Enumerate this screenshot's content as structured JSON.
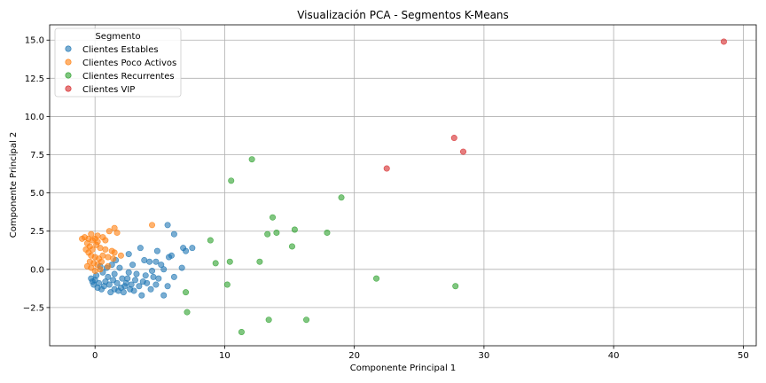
{
  "chart_data": {
    "type": "scatter",
    "title": "Visualización PCA - Segmentos K-Means",
    "xlabel": "Componente Principal 1",
    "ylabel": "Componente Principal 2",
    "xlim": [
      -3.5,
      51
    ],
    "ylim": [
      -5.0,
      16.0
    ],
    "xticks": [
      0,
      10,
      20,
      30,
      40,
      50
    ],
    "yticks": [
      -2.5,
      0.0,
      2.5,
      5.0,
      7.5,
      10.0,
      12.5,
      15.0
    ],
    "xtick_labels": [
      "0",
      "10",
      "20",
      "30",
      "40",
      "50"
    ],
    "ytick_labels": [
      "−2.5",
      "0.0",
      "2.5",
      "5.0",
      "7.5",
      "10.0",
      "12.5",
      "15.0"
    ],
    "grid": true,
    "legend": {
      "title": "Segmento",
      "placement": "top-left"
    },
    "series": [
      {
        "name": "Clientes Estables",
        "color": "#1f77b4",
        "points": [
          [
            5.6,
            2.9
          ],
          [
            6.1,
            2.3
          ],
          [
            3.5,
            1.4
          ],
          [
            6.8,
            1.4
          ],
          [
            7.5,
            1.4
          ],
          [
            7.0,
            1.2
          ],
          [
            4.8,
            1.2
          ],
          [
            5.9,
            0.9
          ],
          [
            5.7,
            0.8
          ],
          [
            2.6,
            1.0
          ],
          [
            3.8,
            0.6
          ],
          [
            4.2,
            0.5
          ],
          [
            4.7,
            0.5
          ],
          [
            5.1,
            0.3
          ],
          [
            6.7,
            0.1
          ],
          [
            5.3,
            0.0
          ],
          [
            4.4,
            -0.1
          ],
          [
            3.2,
            -0.3
          ],
          [
            4.9,
            -0.6
          ],
          [
            6.1,
            -0.5
          ],
          [
            4.0,
            -0.9
          ],
          [
            4.7,
            -1.0
          ],
          [
            5.6,
            -1.1
          ],
          [
            4.3,
            -1.3
          ],
          [
            3.6,
            -1.7
          ],
          [
            5.3,
            -1.7
          ],
          [
            3.1,
            -0.7
          ],
          [
            3.9,
            -0.4
          ],
          [
            2.6,
            -0.2
          ],
          [
            2.9,
            0.3
          ],
          [
            2.5,
            -0.6
          ],
          [
            2.4,
            -0.9
          ],
          [
            2.0,
            -1.2
          ],
          [
            1.5,
            -1.3
          ],
          [
            1.2,
            -1.5
          ],
          [
            1.8,
            -1.4
          ],
          [
            0.7,
            -1.1
          ],
          [
            0.3,
            -0.9
          ],
          [
            0.0,
            -0.7
          ],
          [
            -0.2,
            -0.8
          ],
          [
            0.5,
            -1.3
          ],
          [
            1.0,
            -0.5
          ],
          [
            1.5,
            -0.3
          ],
          [
            2.1,
            -0.6
          ],
          [
            0.6,
            -0.2
          ],
          [
            0.9,
            0.1
          ],
          [
            1.3,
            0.3
          ],
          [
            0.4,
            0.2
          ],
          [
            2.3,
            -1.1
          ],
          [
            2.8,
            -1.0
          ],
          [
            1.7,
            -0.9
          ],
          [
            1.1,
            -1.0
          ],
          [
            0.2,
            -1.2
          ],
          [
            -0.1,
            -1.0
          ],
          [
            3.4,
            -1.1
          ],
          [
            3.0,
            -1.4
          ],
          [
            2.2,
            -1.5
          ],
          [
            1.9,
            0.1
          ],
          [
            1.4,
            -0.7
          ],
          [
            0.8,
            -0.8
          ],
          [
            -0.3,
            -0.6
          ],
          [
            0.1,
            -0.4
          ],
          [
            2.7,
            -1.3
          ],
          [
            3.7,
            -0.8
          ],
          [
            4.5,
            -0.5
          ],
          [
            1.6,
            0.6
          ]
        ]
      },
      {
        "name": "Clientes Poco Activos",
        "color": "#ff7f0e",
        "points": [
          [
            -1.0,
            2.0
          ],
          [
            -0.8,
            2.1
          ],
          [
            -0.5,
            2.0
          ],
          [
            -0.3,
            2.3
          ],
          [
            0.0,
            2.0
          ],
          [
            0.2,
            1.8
          ],
          [
            -0.6,
            1.7
          ],
          [
            -0.4,
            1.5
          ],
          [
            -0.2,
            1.3
          ],
          [
            0.1,
            1.6
          ],
          [
            0.4,
            1.4
          ],
          [
            0.8,
            1.3
          ],
          [
            1.3,
            1.2
          ],
          [
            1.5,
            1.1
          ],
          [
            -0.5,
            1.1
          ],
          [
            -0.3,
            0.9
          ],
          [
            0.0,
            0.8
          ],
          [
            0.3,
            0.7
          ],
          [
            0.6,
            0.9
          ],
          [
            1.0,
            0.8
          ],
          [
            1.4,
            0.7
          ],
          [
            -0.4,
            0.5
          ],
          [
            -0.1,
            0.4
          ],
          [
            0.2,
            0.3
          ],
          [
            0.5,
            0.5
          ],
          [
            -0.6,
            0.2
          ],
          [
            -0.3,
            0.1
          ],
          [
            0.0,
            -0.1
          ],
          [
            0.4,
            0.0
          ],
          [
            1.1,
            2.5
          ],
          [
            1.5,
            2.7
          ],
          [
            1.7,
            2.4
          ],
          [
            0.8,
            1.9
          ],
          [
            2.0,
            0.9
          ],
          [
            1.0,
            0.2
          ],
          [
            -0.2,
            1.9
          ],
          [
            0.6,
            2.1
          ],
          [
            -0.7,
            1.3
          ],
          [
            4.4,
            2.9
          ],
          [
            0.2,
            2.2
          ]
        ]
      },
      {
        "name": "Clientes Recurrentes",
        "color": "#2ca02c",
        "points": [
          [
            12.1,
            7.2
          ],
          [
            10.5,
            5.8
          ],
          [
            19.0,
            4.7
          ],
          [
            13.7,
            3.4
          ],
          [
            15.4,
            2.6
          ],
          [
            13.3,
            2.3
          ],
          [
            14.0,
            2.4
          ],
          [
            17.9,
            2.4
          ],
          [
            8.9,
            1.9
          ],
          [
            15.2,
            1.5
          ],
          [
            12.7,
            0.5
          ],
          [
            9.3,
            0.4
          ],
          [
            10.4,
            0.5
          ],
          [
            21.7,
            -0.6
          ],
          [
            27.8,
            -1.1
          ],
          [
            10.2,
            -1.0
          ],
          [
            7.0,
            -1.5
          ],
          [
            7.1,
            -2.8
          ],
          [
            13.4,
            -3.3
          ],
          [
            16.3,
            -3.3
          ],
          [
            11.3,
            -4.1
          ]
        ]
      },
      {
        "name": "Clientes VIP",
        "color": "#d62728",
        "points": [
          [
            48.5,
            14.9
          ],
          [
            27.7,
            8.6
          ],
          [
            28.4,
            7.7
          ],
          [
            22.5,
            6.6
          ]
        ]
      }
    ]
  }
}
